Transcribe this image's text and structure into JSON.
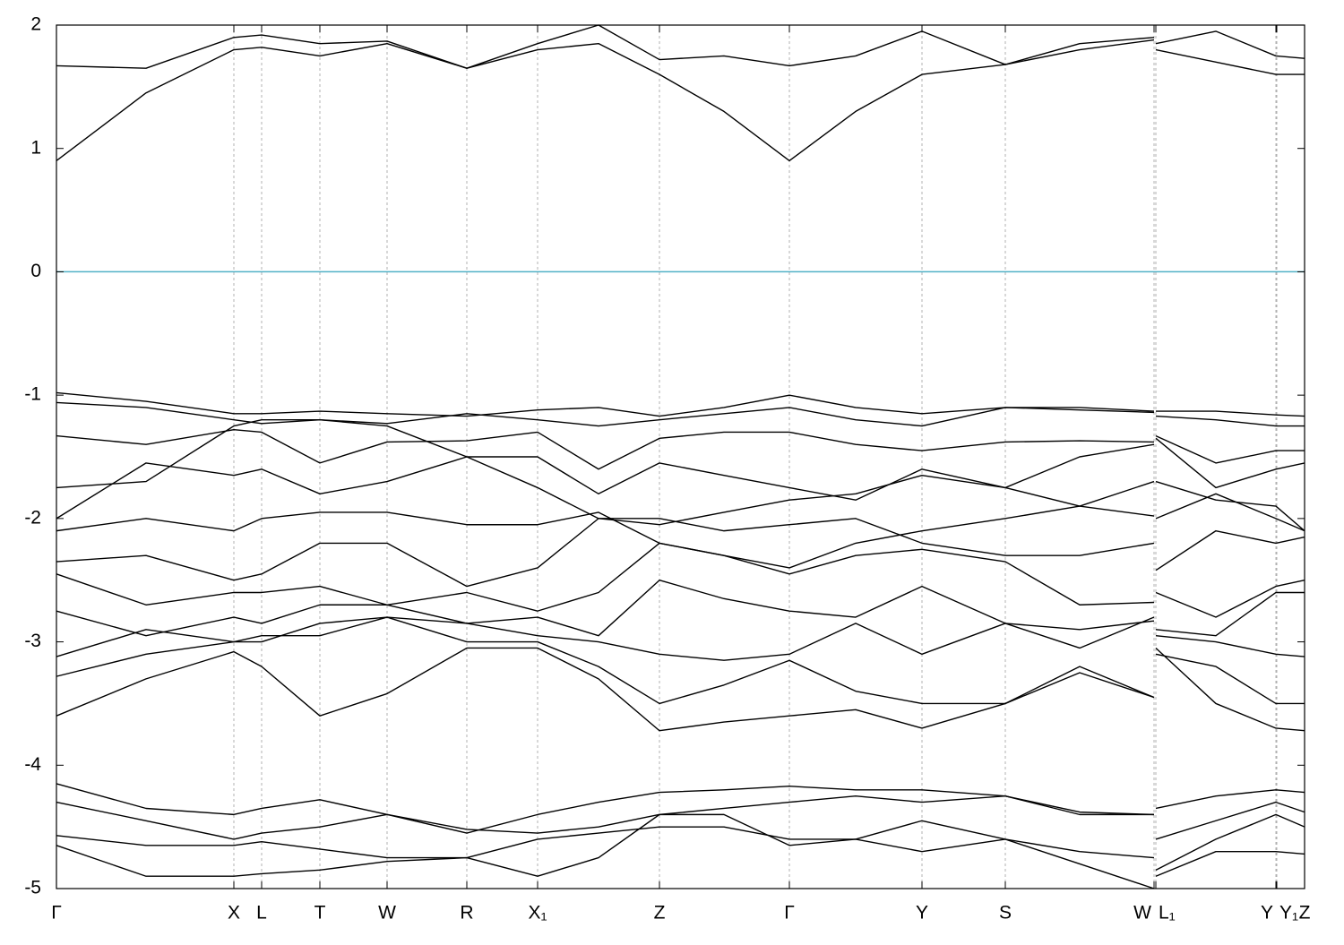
{
  "chart_data": {
    "type": "line",
    "color": "#000000",
    "xgrid": true,
    "reference_line": {
      "value": 0,
      "color": "#4fb0c6"
    },
    "xlim": [
      0,
      1393
    ],
    "ylim": [
      -5,
      2
    ],
    "yticks": [
      2,
      1,
      0,
      -1,
      -2,
      -3,
      -4,
      -5
    ],
    "xticks": [
      {
        "value": 0,
        "label": "Γ"
      },
      {
        "value": 198,
        "label": "X"
      },
      {
        "value": 229,
        "label": "L"
      },
      {
        "value": 294,
        "label": "T"
      },
      {
        "value": 369,
        "label": "W"
      },
      {
        "value": 458,
        "label": "R"
      },
      {
        "value": 537,
        "label": "X₁"
      },
      {
        "value": 673,
        "label": "Z"
      },
      {
        "value": 818,
        "label": "Γ"
      },
      {
        "value": 966,
        "label": "Y"
      },
      {
        "value": 1059,
        "label": "S"
      },
      {
        "value": 1225,
        "label": "W"
      },
      {
        "value": 1227,
        "label": "L₁"
      },
      {
        "value": 1361,
        "label": "Y"
      },
      {
        "value": 1362,
        "label": "Y₁"
      },
      {
        "value": 1393,
        "label": "Z"
      }
    ],
    "x": [
      0,
      100,
      198,
      229,
      294,
      369,
      458,
      537,
      605,
      673,
      745,
      818,
      892,
      966,
      1059,
      1142,
      1225,
      1226,
      1227,
      1294,
      1361,
      1393
    ],
    "series": [
      {
        "values": [
          0.9,
          1.45,
          1.8,
          1.82,
          1.75,
          1.85,
          1.65,
          1.8,
          1.85,
          1.6,
          1.3,
          0.9,
          1.3,
          1.6,
          1.68,
          1.8,
          1.88,
          null,
          1.8,
          1.7,
          1.6,
          1.6
        ]
      },
      {
        "values": [
          1.67,
          1.65,
          1.9,
          1.92,
          1.85,
          1.87,
          1.65,
          1.85,
          2.0,
          1.72,
          1.75,
          1.67,
          1.75,
          1.95,
          1.68,
          1.85,
          1.9,
          null,
          1.85,
          1.95,
          1.75,
          1.73
        ]
      },
      {
        "values": [
          -0.98,
          -1.05,
          -1.15,
          -1.15,
          -1.13,
          -1.15,
          -1.17,
          -1.12,
          -1.1,
          -1.17,
          -1.1,
          -1.0,
          -1.1,
          -1.15,
          -1.1,
          -1.1,
          -1.13,
          null,
          -1.13,
          -1.13,
          -1.16,
          -1.17
        ]
      },
      {
        "values": [
          -1.06,
          -1.1,
          -1.2,
          -1.23,
          -1.2,
          -1.23,
          -1.15,
          -1.2,
          -1.25,
          -1.2,
          -1.15,
          -1.1,
          -1.2,
          -1.25,
          -1.1,
          -1.12,
          -1.14,
          null,
          -1.17,
          -1.2,
          -1.25,
          -1.25
        ]
      },
      {
        "values": [
          -1.33,
          -1.4,
          -1.28,
          -1.3,
          -1.55,
          -1.38,
          -1.37,
          -1.3,
          -1.6,
          -1.35,
          -1.3,
          -1.3,
          -1.4,
          -1.45,
          -1.38,
          -1.37,
          -1.38,
          null,
          -1.33,
          -1.55,
          -1.45,
          -1.45
        ]
      },
      {
        "values": [
          -1.75,
          -1.7,
          -1.25,
          -1.2,
          -1.2,
          -1.25,
          -1.5,
          -1.5,
          -1.8,
          -1.55,
          -1.65,
          -1.75,
          -1.85,
          -1.6,
          -1.75,
          -1.5,
          -1.4,
          null,
          -1.35,
          -1.75,
          -1.6,
          -1.55
        ]
      },
      {
        "values": [
          -2.0,
          -1.55,
          -1.65,
          -1.6,
          -1.8,
          -1.7,
          -1.5,
          -1.75,
          -2.0,
          -2.05,
          -1.95,
          -1.85,
          -1.8,
          -1.65,
          -1.75,
          -1.9,
          -1.7,
          null,
          -1.7,
          -1.85,
          -1.9,
          -2.1
        ]
      },
      {
        "values": [
          -2.1,
          -2.0,
          -2.1,
          -2.0,
          -1.95,
          -1.95,
          -2.05,
          -2.05,
          -1.95,
          -2.2,
          -2.3,
          -2.4,
          -2.2,
          -2.1,
          -2.0,
          -1.9,
          -1.98,
          null,
          -2.0,
          -1.8,
          -2.0,
          -2.1
        ]
      },
      {
        "values": [
          -2.35,
          -2.3,
          -2.5,
          -2.45,
          -2.2,
          -2.2,
          -2.55,
          -2.4,
          -2.0,
          -2.0,
          -2.1,
          -2.05,
          -2.0,
          -2.2,
          -2.3,
          -2.3,
          -2.2,
          null,
          -2.42,
          -2.1,
          -2.2,
          -2.15
        ]
      },
      {
        "values": [
          -2.45,
          -2.7,
          -2.6,
          -2.6,
          -2.55,
          -2.7,
          -2.6,
          -2.75,
          -2.6,
          -2.2,
          -2.3,
          -2.45,
          -2.3,
          -2.25,
          -2.35,
          -2.7,
          -2.68,
          null,
          -2.6,
          -2.8,
          -2.55,
          -2.5
        ]
      },
      {
        "values": [
          -2.75,
          -2.95,
          -2.8,
          -2.85,
          -2.7,
          -2.7,
          -2.85,
          -2.8,
          -2.95,
          -2.5,
          -2.65,
          -2.75,
          -2.8,
          -2.55,
          -2.85,
          -2.9,
          -2.83,
          null,
          -2.9,
          -2.95,
          -2.6,
          -2.6
        ]
      },
      {
        "values": [
          -3.12,
          -2.9,
          -3.0,
          -2.95,
          -2.95,
          -2.8,
          -2.85,
          -2.95,
          -3.0,
          -3.1,
          -3.15,
          -3.1,
          -2.85,
          -3.1,
          -2.85,
          -3.05,
          -2.8,
          null,
          -2.95,
          -3.0,
          -3.1,
          -3.12
        ]
      },
      {
        "values": [
          -3.28,
          -3.1,
          -3.0,
          -3.0,
          -2.85,
          -2.8,
          -3.0,
          -3.0,
          -3.2,
          -3.5,
          -3.35,
          -3.15,
          -3.4,
          -3.5,
          -3.5,
          -3.2,
          -3.45,
          null,
          -3.1,
          -3.2,
          -3.5,
          -3.5
        ]
      },
      {
        "values": [
          -3.6,
          -3.3,
          -3.08,
          -3.2,
          -3.6,
          -3.42,
          -3.05,
          -3.05,
          -3.3,
          -3.72,
          -3.65,
          -3.6,
          -3.55,
          -3.7,
          -3.5,
          -3.25,
          -3.45,
          null,
          -3.05,
          -3.5,
          -3.7,
          -3.72
        ]
      },
      {
        "values": [
          -4.15,
          -4.35,
          -4.4,
          -4.35,
          -4.28,
          -4.4,
          -4.55,
          -4.4,
          -4.3,
          -4.22,
          -4.2,
          -4.17,
          -4.2,
          -4.2,
          -4.25,
          -4.38,
          -4.4,
          null,
          -4.35,
          -4.25,
          -4.2,
          -4.22
        ]
      },
      {
        "values": [
          -4.3,
          -4.45,
          -4.6,
          -4.55,
          -4.5,
          -4.4,
          -4.52,
          -4.55,
          -4.5,
          -4.4,
          -4.35,
          -4.3,
          -4.25,
          -4.3,
          -4.25,
          -4.4,
          -4.4,
          null,
          -4.6,
          -4.45,
          -4.3,
          -4.38
        ]
      },
      {
        "values": [
          -4.57,
          -4.65,
          -4.65,
          -4.62,
          -4.68,
          -4.75,
          -4.75,
          -4.6,
          -4.55,
          -4.5,
          -4.5,
          -4.6,
          -4.6,
          -4.45,
          -4.6,
          -4.7,
          -4.75,
          null,
          -4.9,
          -4.7,
          -4.7,
          -4.72
        ]
      },
      {
        "values": [
          -4.65,
          -4.9,
          -4.9,
          -4.88,
          -4.85,
          -4.78,
          -4.75,
          -4.9,
          -4.75,
          -4.4,
          -4.4,
          -4.65,
          -4.6,
          -4.7,
          -4.6,
          -4.8,
          -5.0,
          null,
          -4.85,
          -4.6,
          -4.4,
          -4.5
        ]
      }
    ]
  }
}
